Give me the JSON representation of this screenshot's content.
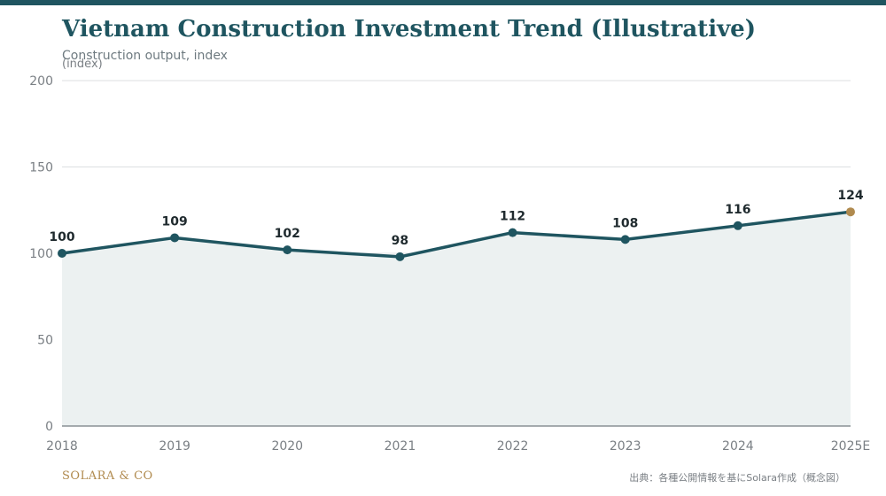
{
  "header": {
    "title": "Vietnam Construction Investment Trend (Illustrative)",
    "subtitle": "Construction output, index"
  },
  "footer": {
    "brand": "SOLARA & CO",
    "source": "出典：各種公開情報を基にSolara作成（概念図）"
  },
  "colors": {
    "accent": "#1f5560",
    "highlight": "#b08a4e",
    "area_fill": "#ecf1f1",
    "grid": "#dcdfe1",
    "tick_text": "#7a7f84",
    "label_text": "#1f2a2e"
  },
  "chart_data": {
    "type": "line",
    "title": "Vietnam Construction Investment Trend (Illustrative)",
    "subtitle": "Construction output, index",
    "ylabel": "(index)",
    "xlabel": "",
    "categories": [
      "2018",
      "2019",
      "2020",
      "2021",
      "2022",
      "2023",
      "2024",
      "2025E"
    ],
    "series": [
      {
        "values": [
          100,
          109,
          102,
          98,
          112,
          108,
          116,
          124
        ]
      }
    ],
    "data_labels": [
      "100",
      "109",
      "102",
      "98",
      "112",
      "108",
      "116",
      "124"
    ],
    "yticks": [
      0,
      50,
      100,
      150,
      200
    ],
    "ylim": [
      0,
      200
    ],
    "grid": true,
    "area_fill": true,
    "highlight_last_point": true
  }
}
